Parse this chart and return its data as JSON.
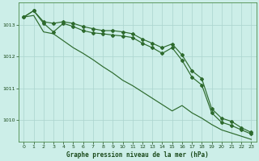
{
  "title": "Graphe pression niveau de la mer (hPa)",
  "bg_color": "#cceee8",
  "grid_color": "#aad4ce",
  "line_color": "#2d6a2d",
  "spine_color": "#4a8a4a",
  "x": [
    0,
    1,
    2,
    3,
    4,
    5,
    6,
    7,
    8,
    9,
    10,
    11,
    12,
    13,
    14,
    15,
    16,
    17,
    18,
    19,
    20,
    21,
    22,
    23
  ],
  "line1": [
    1013.25,
    1013.45,
    1013.1,
    1013.05,
    1013.1,
    1013.05,
    1012.95,
    1012.88,
    1012.82,
    1012.82,
    1012.78,
    1012.72,
    1012.55,
    1012.42,
    1012.28,
    1012.4,
    1012.05,
    1011.55,
    1011.3,
    1010.35,
    1010.05,
    1009.95,
    1009.75,
    1009.6
  ],
  "line2": [
    1013.25,
    1013.45,
    1013.05,
    1012.78,
    1013.05,
    1012.95,
    1012.82,
    1012.75,
    1012.72,
    1012.68,
    1012.65,
    1012.6,
    1012.42,
    1012.28,
    1012.1,
    1012.28,
    1011.88,
    1011.35,
    1011.1,
    1010.22,
    1009.92,
    1009.82,
    1009.68,
    1009.55
  ],
  "line3": [
    1013.25,
    1013.3,
    1012.78,
    1012.72,
    1012.5,
    1012.28,
    1012.1,
    1011.9,
    1011.68,
    1011.48,
    1011.25,
    1011.08,
    1010.88,
    1010.68,
    1010.48,
    1010.28,
    1010.45,
    1010.22,
    1010.05,
    1009.85,
    1009.68,
    1009.58,
    1009.48,
    1009.38
  ],
  "ylim": [
    1009.3,
    1013.7
  ],
  "yticks": [
    1010,
    1011,
    1012,
    1013
  ],
  "xticks": [
    0,
    1,
    2,
    3,
    4,
    5,
    6,
    7,
    8,
    9,
    10,
    11,
    12,
    13,
    14,
    15,
    16,
    17,
    18,
    19,
    20,
    21,
    22,
    23
  ]
}
